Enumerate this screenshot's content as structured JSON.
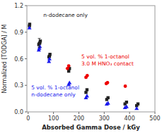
{
  "chart_data": {
    "type": "scatter",
    "x_label": "Absorbed Gamma Dose / kGy",
    "y_label": "Normalized [TODGA] / M",
    "xlim": [
      -5,
      500
    ],
    "ylim": [
      0,
      1.2
    ],
    "xticks": [
      0,
      100,
      200,
      300,
      400,
      500
    ],
    "yticks": [
      {
        "value": 0,
        "label": "0.0"
      },
      0.3,
      0.6,
      0.9,
      1.2
    ],
    "grid": false,
    "series": [
      {
        "color": "#222222",
        "marker": "square",
        "x": [
          5,
          6,
          42,
          44,
          46,
          48,
          82,
          84,
          86,
          160,
          163,
          228,
          232,
          310,
          315,
          382,
          388,
          428,
          433
        ],
        "values": [
          0.97,
          0.99,
          0.76,
          0.77,
          0.78,
          0.8,
          0.62,
          0.63,
          0.65,
          0.46,
          0.49,
          0.22,
          0.25,
          0.14,
          0.16,
          0.09,
          0.11,
          0.07,
          0.09
        ]
      },
      {
        "color": "#1a1aee",
        "marker": "triangle",
        "x": [
          5,
          42,
          44,
          46,
          82,
          84,
          160,
          163,
          228,
          232,
          310,
          315,
          382,
          388,
          428
        ],
        "values": [
          0.95,
          0.7,
          0.72,
          0.74,
          0.57,
          0.6,
          0.31,
          0.33,
          0.16,
          0.18,
          0.09,
          0.1,
          0.05,
          0.06,
          0.04
        ]
      },
      {
        "color": "#ee0000",
        "marker": "circle",
        "x": [
          155,
          160,
          228,
          233,
          308,
          313,
          383
        ],
        "values": [
          0.49,
          0.52,
          0.39,
          0.41,
          0.32,
          0.33,
          0.29
        ]
      }
    ],
    "error_bars": [
      {
        "color": "#222222",
        "x": [
          44
        ],
        "values": [
          0.78
        ],
        "errors": [
          0.05
        ]
      }
    ],
    "annotations": [
      {
        "text": [
          "n-dodecane only"
        ],
        "color": "#222222"
      },
      {
        "text": [
          "5 vol. % 1-octanol",
          "3.0 M HNO₃ contact"
        ],
        "color": "#ee0000"
      },
      {
        "text": [
          "5 vol. % 1-octanol",
          "n-dodecane only"
        ],
        "color": "#1a1aee"
      }
    ]
  }
}
